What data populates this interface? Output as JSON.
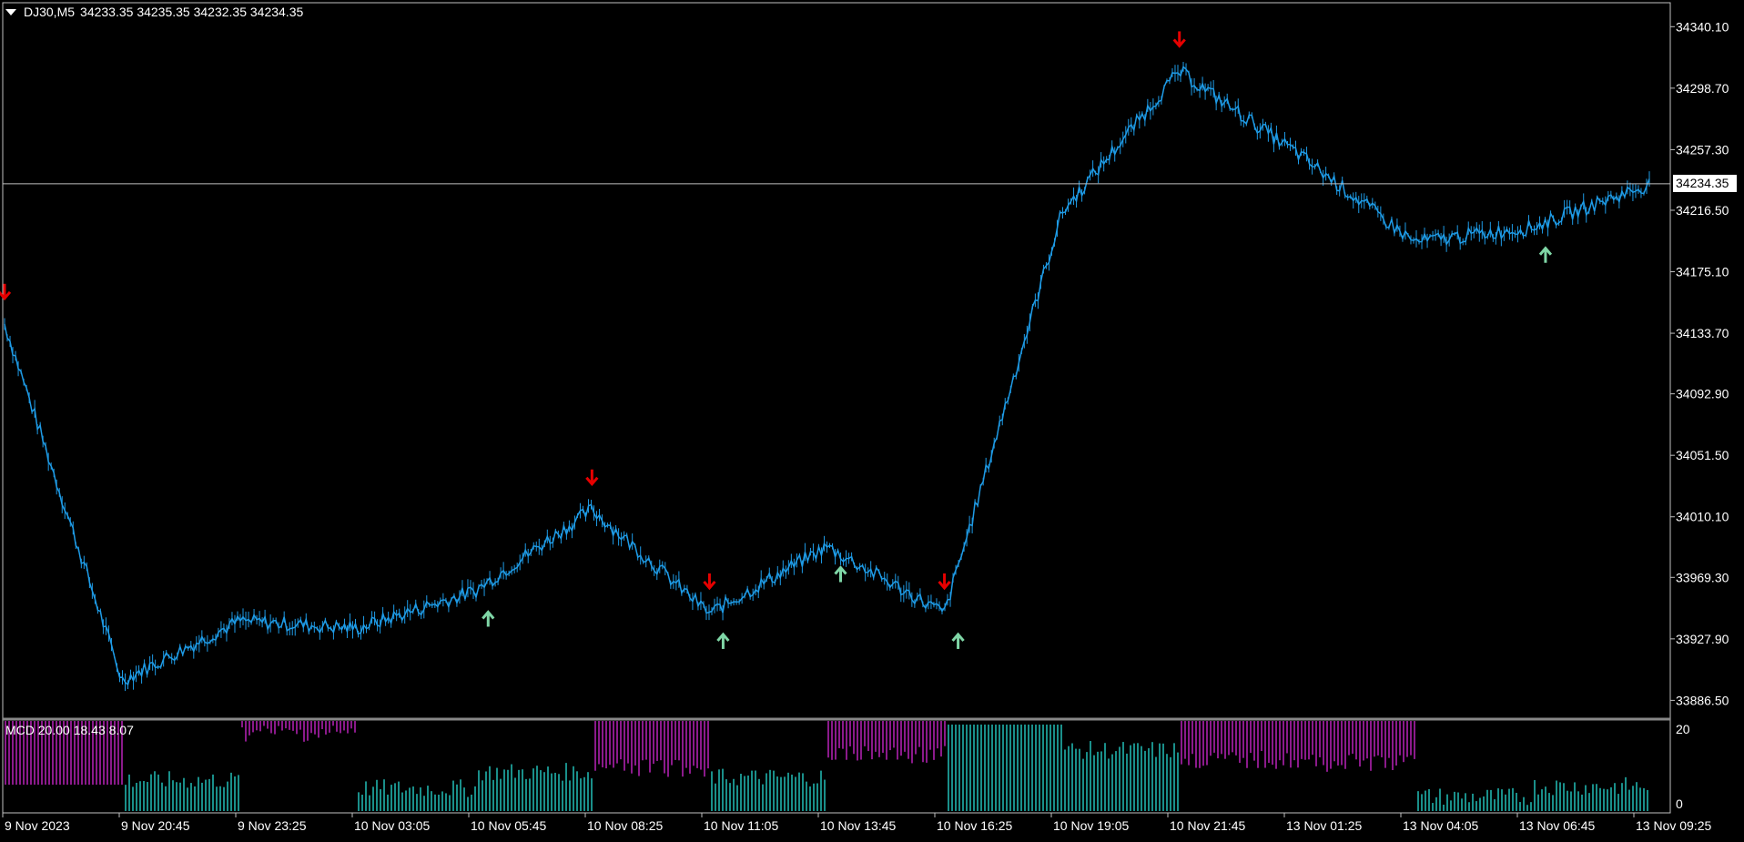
{
  "header": {
    "symbol": "DJ30,M5",
    "ohlc": "34233.35 34235.35 34232.35 34234.35"
  },
  "current_price": "34234.35",
  "price_axis": [
    "34340.10",
    "34298.70",
    "34257.30",
    "34216.50",
    "34175.10",
    "34133.70",
    "34092.90",
    "34051.50",
    "34010.10",
    "33969.30",
    "33927.90",
    "33886.50"
  ],
  "time_axis": [
    "9 Nov 2023",
    "9 Nov 20:45",
    "9 Nov 23:25",
    "10 Nov 03:05",
    "10 Nov 05:45",
    "10 Nov 08:25",
    "10 Nov 11:05",
    "10 Nov 13:45",
    "10 Nov 16:25",
    "10 Nov 19:05",
    "10 Nov 21:45",
    "13 Nov 01:25",
    "13 Nov 04:05",
    "13 Nov 06:45",
    "13 Nov 09:25"
  ],
  "indicator": {
    "label": "MCD 20.00 18.43 8.07",
    "axis_top": "20",
    "axis_bottom": "0"
  },
  "colors": {
    "candle": "#1e9be6",
    "sell_arrow": "#e60000",
    "buy_arrow": "#7fd6a6",
    "hist_neg": "#8b1a8b",
    "hist_pos": "#1a8f8a",
    "grid": "#c0c0c0"
  },
  "chart_data": {
    "type": "line",
    "x": [
      "9 Nov 2023",
      "9 Nov 20:45",
      "9 Nov 23:25",
      "10 Nov 03:05",
      "10 Nov 05:45",
      "10 Nov 08:25",
      "10 Nov 11:05",
      "10 Nov 13:45",
      "10 Nov 16:25",
      "10 Nov 19:05",
      "10 Nov 21:45",
      "13 Nov 01:25",
      "13 Nov 04:05",
      "13 Nov 06:45",
      "13 Nov 09:25"
    ],
    "series": [
      {
        "name": "DJ30,M5",
        "values": [
          34140,
          33900,
          33940,
          33935,
          33960,
          34015,
          33945,
          33990,
          33945,
          34215,
          34310,
          34255,
          34195,
          34205,
          34234
        ]
      }
    ],
    "ylim": [
      33880,
      34355
    ],
    "sell_signals": [
      "9 Nov 2023",
      "10 Nov 08:25",
      "10 Nov 11:05",
      "10 Nov 16:25",
      "10 Nov 21:45"
    ],
    "buy_signals": [
      "10 Nov 05:45",
      "10 Nov 11:05",
      "10 Nov 13:45",
      "10 Nov 16:25",
      "13 Nov 06:45"
    ]
  }
}
